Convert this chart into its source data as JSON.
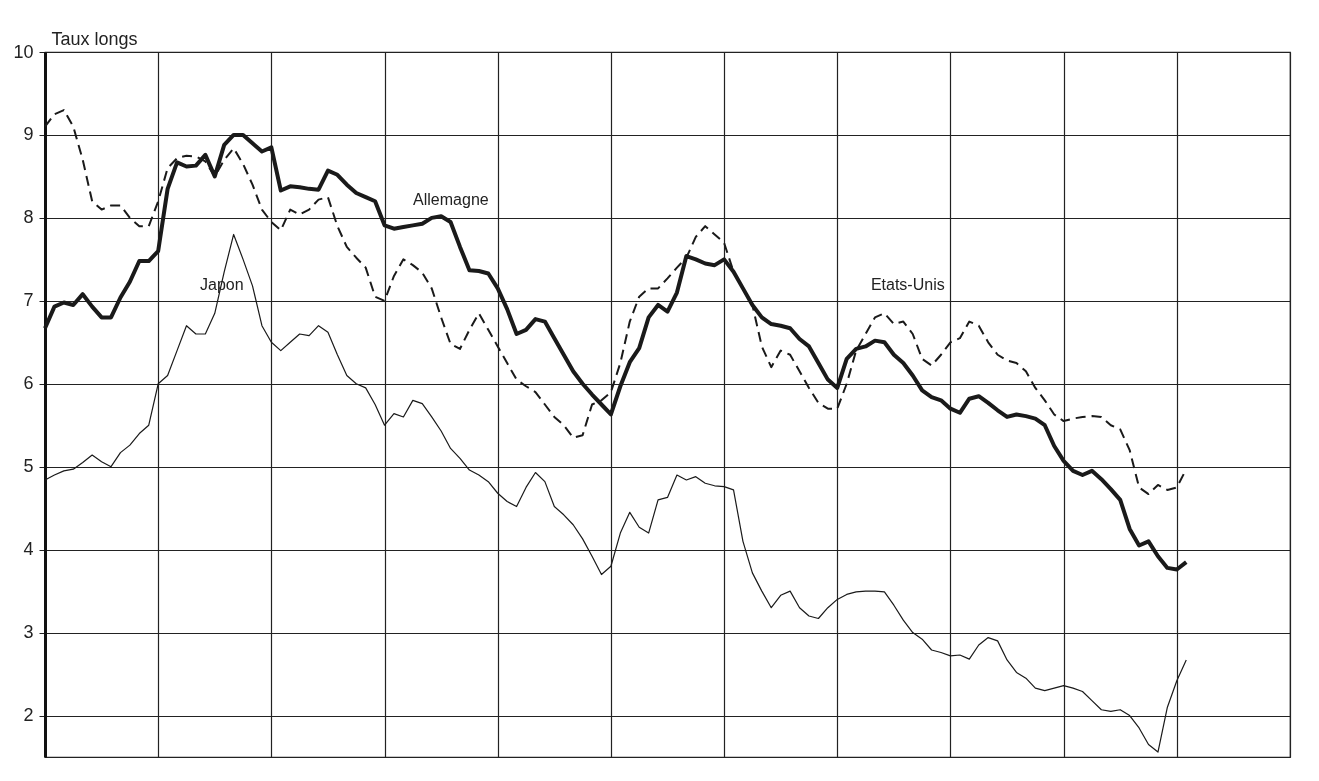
{
  "chart_data": {
    "type": "line",
    "ylabel": "Taux longs",
    "ylim": [
      1.5,
      10
    ],
    "categories": [
      null,
      null,
      null,
      null,
      null,
      null,
      null,
      null,
      null,
      null,
      null,
      null,
      null,
      null,
      null,
      null,
      null,
      null,
      null,
      null,
      null,
      null,
      null,
      null,
      null,
      null,
      null,
      null,
      null,
      null,
      null,
      null,
      null,
      null,
      null,
      null,
      null,
      null,
      null,
      null,
      null,
      null,
      null,
      null,
      null,
      null,
      null,
      null,
      null,
      null,
      null,
      null,
      null,
      null,
      null,
      null,
      null,
      null,
      null,
      null,
      null,
      null,
      null,
      null,
      null,
      null,
      null,
      null,
      null,
      null,
      null,
      null,
      null,
      null,
      null,
      null,
      null,
      null,
      null,
      null,
      null,
      null,
      null,
      null,
      null,
      null,
      null,
      null,
      null,
      null,
      null,
      null,
      null,
      null,
      null,
      null,
      null,
      null,
      null,
      null,
      null,
      null,
      null,
      null,
      null,
      null,
      null,
      null,
      null,
      null,
      null,
      null,
      null,
      null,
      null,
      null,
      null,
      null,
      null,
      null,
      null,
      null,
      null,
      null,
      null,
      null,
      null,
      null,
      null,
      null,
      null,
      null,
      null
    ],
    "yticks": [
      2,
      3,
      4,
      5,
      6,
      7,
      8,
      9,
      10
    ],
    "grid": true,
    "tick_labels": "y",
    "line_style": "solid",
    "series": [
      {
        "color": "#1a1a1a",
        "values": [
          6.67,
          6.93,
          6.98,
          6.95,
          7.08,
          6.93,
          6.8,
          6.8,
          7.04,
          7.23,
          7.48,
          7.48,
          7.6,
          8.35,
          8.67,
          8.62,
          8.63,
          8.76,
          8.5,
          8.88,
          9.0,
          9.0,
          8.9,
          8.8,
          8.85,
          8.33,
          8.38,
          8.37,
          8.35,
          8.34,
          8.57,
          8.52,
          8.4,
          8.3,
          8.25,
          8.2,
          7.91,
          7.87,
          7.89,
          7.91,
          7.93,
          8.0,
          8.02,
          7.95,
          7.65,
          7.37,
          7.36,
          7.33,
          7.15,
          6.9,
          6.6,
          6.65,
          6.78,
          6.75,
          6.55,
          6.35,
          6.15,
          6.0,
          5.87,
          5.75,
          5.63,
          5.97,
          6.26,
          6.43,
          6.8,
          6.95,
          6.87,
          7.1,
          7.54,
          7.5,
          7.45,
          7.43,
          7.5,
          7.35,
          7.15,
          6.95,
          6.8,
          6.72,
          6.7,
          6.67,
          6.54,
          6.45,
          6.25,
          6.05,
          5.95,
          6.3,
          6.42,
          6.45,
          6.52,
          6.5,
          6.35,
          6.25,
          6.1,
          5.92,
          5.84,
          5.8,
          5.7,
          5.65,
          5.82,
          5.85,
          5.77,
          5.68,
          5.6,
          5.63,
          5.61,
          5.58,
          5.5,
          5.25,
          5.07,
          4.95,
          4.9,
          4.95,
          4.85,
          4.73,
          4.6,
          4.25,
          4.05,
          4.1,
          3.92,
          3.78,
          3.76,
          3.85,
          null,
          null,
          null,
          null,
          null,
          null,
          null,
          null,
          null,
          null,
          null
        ]
      },
      {
        "color": "#1a1a1a",
        "line_style": "dashed",
        "values": [
          9.1,
          9.25,
          9.3,
          9.1,
          8.7,
          8.2,
          8.1,
          8.15,
          8.15,
          8.0,
          7.9,
          7.9,
          8.2,
          8.6,
          8.72,
          8.75,
          8.74,
          8.68,
          8.5,
          8.7,
          8.84,
          8.65,
          8.4,
          8.1,
          7.95,
          7.85,
          8.1,
          8.04,
          8.1,
          8.22,
          8.25,
          7.9,
          7.65,
          7.52,
          7.4,
          7.05,
          7.0,
          7.3,
          7.5,
          7.43,
          7.34,
          7.15,
          6.8,
          6.48,
          6.42,
          6.65,
          6.85,
          6.65,
          6.45,
          6.25,
          6.05,
          5.97,
          5.9,
          5.75,
          5.6,
          5.5,
          5.35,
          5.38,
          5.75,
          5.8,
          5.9,
          6.25,
          6.75,
          7.05,
          7.15,
          7.15,
          7.27,
          7.4,
          7.52,
          7.77,
          7.9,
          7.8,
          7.7,
          7.35,
          7.15,
          6.95,
          6.45,
          6.2,
          6.4,
          6.35,
          6.15,
          5.95,
          5.77,
          5.7,
          5.7,
          6.0,
          6.4,
          6.6,
          6.8,
          6.85,
          6.72,
          6.75,
          6.6,
          6.3,
          6.22,
          6.35,
          6.5,
          6.55,
          6.75,
          6.7,
          6.5,
          6.35,
          6.28,
          6.25,
          6.15,
          5.95,
          5.8,
          5.63,
          5.55,
          5.58,
          5.6,
          5.61,
          5.6,
          5.5,
          5.45,
          5.2,
          4.75,
          4.67,
          4.78,
          4.72,
          4.75,
          4.97,
          null,
          null,
          null,
          null,
          null,
          null,
          null,
          null,
          null,
          null,
          null
        ]
      },
      {
        "color": "#1a1a1a",
        "values": [
          4.84,
          4.9,
          4.95,
          4.97,
          5.05,
          5.14,
          5.06,
          5.0,
          5.17,
          5.26,
          5.4,
          5.5,
          6.0,
          6.1,
          6.4,
          6.7,
          6.6,
          6.6,
          6.85,
          7.35,
          7.8,
          7.5,
          7.18,
          6.7,
          6.5,
          6.4,
          6.5,
          6.6,
          6.58,
          6.7,
          6.62,
          6.35,
          6.1,
          6.0,
          5.95,
          5.75,
          5.5,
          5.64,
          5.6,
          5.8,
          5.76,
          5.6,
          5.43,
          5.22,
          5.1,
          4.96,
          4.9,
          4.82,
          4.68,
          4.58,
          4.52,
          4.75,
          4.93,
          4.82,
          4.52,
          4.42,
          4.3,
          4.13,
          3.92,
          3.7,
          3.8,
          4.2,
          4.45,
          4.27,
          4.2,
          4.6,
          4.63,
          4.9,
          4.84,
          4.88,
          4.8,
          4.77,
          4.76,
          4.72,
          4.1,
          3.72,
          3.5,
          3.3,
          3.45,
          3.5,
          3.3,
          3.2,
          3.17,
          3.3,
          3.4,
          3.46,
          3.49,
          3.5,
          3.5,
          3.49,
          3.33,
          3.15,
          3.0,
          2.92,
          2.79,
          2.76,
          2.72,
          2.73,
          2.68,
          2.85,
          2.94,
          2.9,
          2.67,
          2.52,
          2.45,
          2.33,
          2.3,
          2.33,
          2.36,
          2.33,
          2.29,
          2.18,
          2.07,
          2.05,
          2.07,
          2.0,
          1.85,
          1.65,
          1.56,
          2.1,
          2.42,
          2.67,
          null,
          null,
          null,
          null,
          null,
          null,
          null,
          null,
          null,
          null,
          null
        ]
      }
    ],
    "annotations": [
      "Allemagne",
      "Etats-Unis",
      "Japon"
    ]
  }
}
